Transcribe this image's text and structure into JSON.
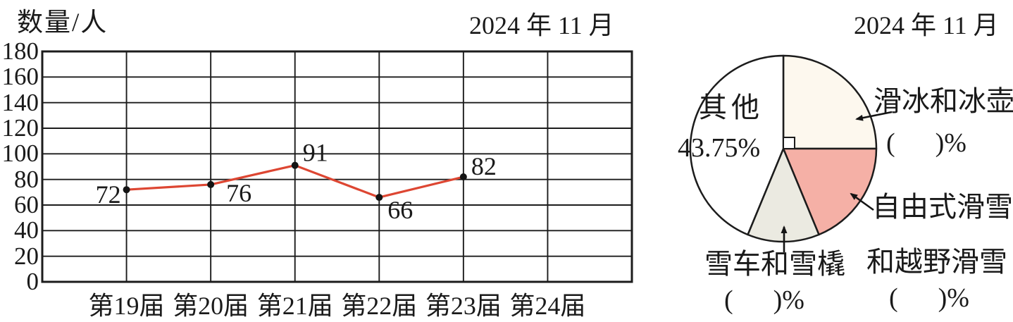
{
  "chart_data": [
    {
      "type": "line",
      "title": "2024 年 11 月",
      "ylabel": "数量/人",
      "xlabel": "",
      "categories": [
        "第19届",
        "第20届",
        "第21届",
        "第22届",
        "第23届",
        "第24届"
      ],
      "series": [
        {
          "name": "数量/人",
          "values": [
            72,
            76,
            91,
            66,
            82
          ]
        }
      ],
      "note": "第24届 has no plotted point (to be filled in)",
      "ylim": [
        0,
        180
      ],
      "ytick_step": 20,
      "grid": true,
      "line_color": "#dd4632",
      "marker_color": "#141414"
    },
    {
      "type": "pie",
      "title": "2024 年 11 月",
      "direction": "clockwise",
      "start_angle": "12 o'clock",
      "right_angle_marker": true,
      "slices": [
        {
          "label": "滑冰和冰壶",
          "pct_display": "(      )%",
          "value_pct": 25,
          "color": "#fdf8ee"
        },
        {
          "label": "自由式滑雪",
          "label_line2": "和越野滑雪",
          "pct_display": "(      )%",
          "value_pct": 18.75,
          "color": "#f5b0a6"
        },
        {
          "label": "雪车和雪橇",
          "pct_display": "(      )%",
          "value_pct": 12.5,
          "color": "#ebeae1"
        },
        {
          "label": "其他",
          "pct_display": "43.75%",
          "value_pct": 43.75,
          "color": "#ffffff"
        }
      ]
    }
  ]
}
